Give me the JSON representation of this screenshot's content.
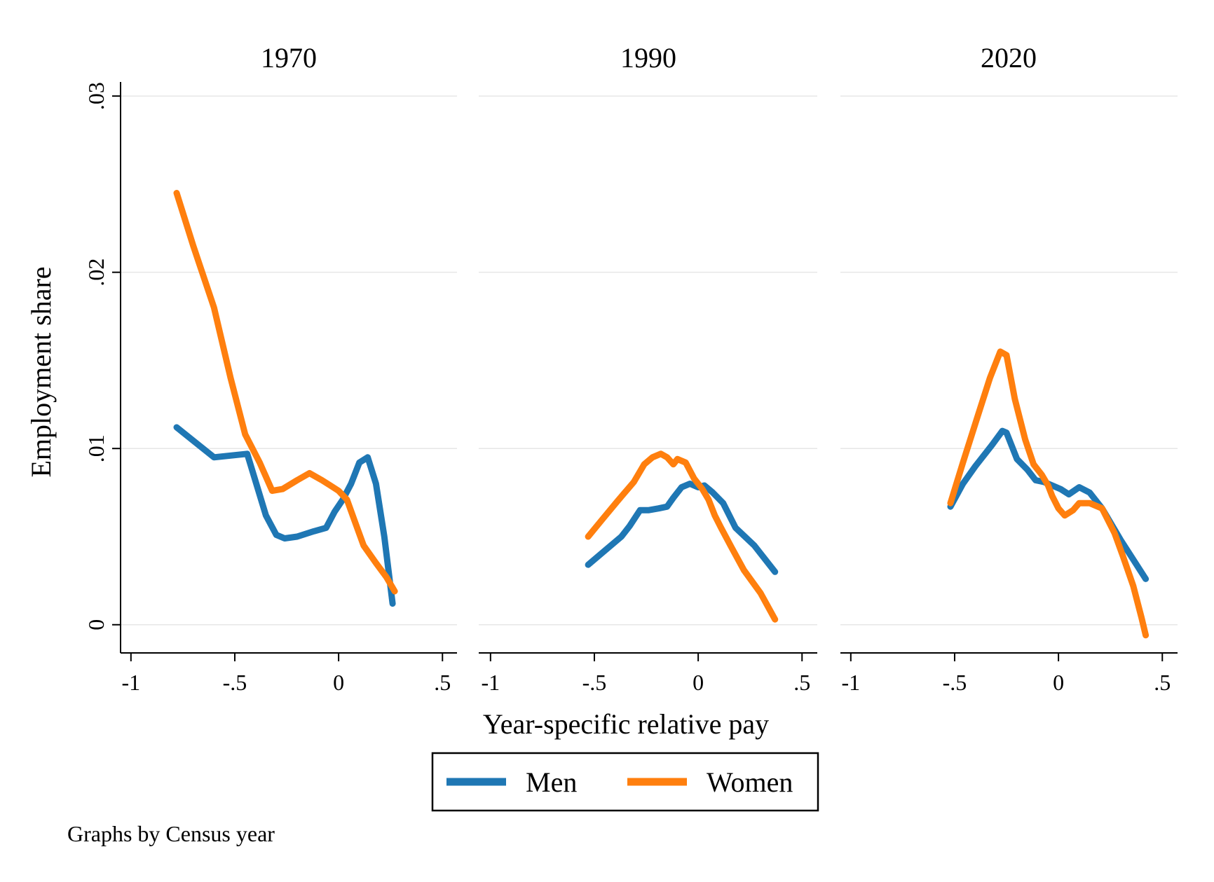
{
  "chart_data": {
    "type": "line",
    "ylabel": "Employment share",
    "xlabel": "Year-specific relative pay",
    "xlim": [
      -1.05,
      0.57
    ],
    "ylim": [
      -0.0016,
      0.0308
    ],
    "xticks": [
      -1,
      -0.5,
      0,
      0.5
    ],
    "xtick_labels": [
      "-1",
      "-.5",
      "0",
      ".5"
    ],
    "yticks": [
      0,
      0.01,
      0.02,
      0.03
    ],
    "ytick_labels": [
      "0",
      ".01",
      ".02",
      ".03"
    ],
    "grid": true,
    "legend_position": "bottom",
    "colors": {
      "Men": "#1f77b4",
      "Women": "#ff7f0e"
    },
    "panels": [
      {
        "title": "1970",
        "series": [
          {
            "name": "Men",
            "points": [
              [
                -0.78,
                0.0112
              ],
              [
                -0.6,
                0.0095
              ],
              [
                -0.44,
                0.0097
              ],
              [
                -0.35,
                0.0062
              ],
              [
                -0.3,
                0.0051
              ],
              [
                -0.26,
                0.0049
              ],
              [
                -0.2,
                0.005
              ],
              [
                -0.12,
                0.0053
              ],
              [
                -0.06,
                0.0055
              ],
              [
                -0.02,
                0.0064
              ],
              [
                0.02,
                0.0071
              ],
              [
                0.06,
                0.008
              ],
              [
                0.1,
                0.0092
              ],
              [
                0.14,
                0.0095
              ],
              [
                0.18,
                0.008
              ],
              [
                0.22,
                0.005
              ],
              [
                0.26,
                0.0012
              ]
            ]
          },
          {
            "name": "Women",
            "points": [
              [
                -0.78,
                0.0245
              ],
              [
                -0.7,
                0.0215
              ],
              [
                -0.6,
                0.018
              ],
              [
                -0.52,
                0.014
              ],
              [
                -0.45,
                0.0108
              ],
              [
                -0.38,
                0.0092
              ],
              [
                -0.32,
                0.0076
              ],
              [
                -0.27,
                0.0077
              ],
              [
                -0.2,
                0.0082
              ],
              [
                -0.14,
                0.0086
              ],
              [
                -0.08,
                0.0082
              ],
              [
                -0.04,
                0.0079
              ],
              [
                0.0,
                0.0076
              ],
              [
                0.04,
                0.0071
              ],
              [
                0.08,
                0.0058
              ],
              [
                0.12,
                0.0045
              ],
              [
                0.18,
                0.0035
              ],
              [
                0.23,
                0.0027
              ],
              [
                0.27,
                0.0019
              ]
            ]
          }
        ]
      },
      {
        "title": "1990",
        "series": [
          {
            "name": "Men",
            "points": [
              [
                -0.53,
                0.0034
              ],
              [
                -0.45,
                0.0042
              ],
              [
                -0.37,
                0.005
              ],
              [
                -0.33,
                0.0056
              ],
              [
                -0.28,
                0.0065
              ],
              [
                -0.24,
                0.0065
              ],
              [
                -0.19,
                0.0066
              ],
              [
                -0.15,
                0.0067
              ],
              [
                -0.12,
                0.0072
              ],
              [
                -0.08,
                0.0078
              ],
              [
                -0.04,
                0.008
              ],
              [
                0.0,
                0.0078
              ],
              [
                0.03,
                0.0079
              ],
              [
                0.07,
                0.0075
              ],
              [
                0.12,
                0.0069
              ],
              [
                0.18,
                0.0055
              ],
              [
                0.27,
                0.0045
              ],
              [
                0.37,
                0.003
              ]
            ]
          },
          {
            "name": "Women",
            "points": [
              [
                -0.53,
                0.005
              ],
              [
                -0.46,
                0.006
              ],
              [
                -0.39,
                0.007
              ],
              [
                -0.31,
                0.0081
              ],
              [
                -0.26,
                0.0091
              ],
              [
                -0.22,
                0.0095
              ],
              [
                -0.18,
                0.0097
              ],
              [
                -0.15,
                0.0095
              ],
              [
                -0.12,
                0.0091
              ],
              [
                -0.1,
                0.0094
              ],
              [
                -0.06,
                0.0092
              ],
              [
                -0.02,
                0.0083
              ],
              [
                0.02,
                0.0077
              ],
              [
                0.05,
                0.0071
              ],
              [
                0.08,
                0.0062
              ],
              [
                0.11,
                0.0055
              ],
              [
                0.16,
                0.0044
              ],
              [
                0.22,
                0.0031
              ],
              [
                0.3,
                0.0018
              ],
              [
                0.37,
                0.0003
              ]
            ]
          }
        ]
      },
      {
        "title": "2020",
        "series": [
          {
            "name": "Men",
            "points": [
              [
                -0.52,
                0.0067
              ],
              [
                -0.46,
                0.008
              ],
              [
                -0.4,
                0.009
              ],
              [
                -0.32,
                0.0102
              ],
              [
                -0.27,
                0.011
              ],
              [
                -0.25,
                0.0109
              ],
              [
                -0.2,
                0.0094
              ],
              [
                -0.15,
                0.0088
              ],
              [
                -0.11,
                0.0082
              ],
              [
                -0.07,
                0.0081
              ],
              [
                -0.03,
                0.0079
              ],
              [
                0.01,
                0.0077
              ],
              [
                0.05,
                0.0074
              ],
              [
                0.1,
                0.0078
              ],
              [
                0.15,
                0.0075
              ],
              [
                0.21,
                0.0066
              ],
              [
                0.3,
                0.0048
              ],
              [
                0.42,
                0.0026
              ]
            ]
          },
          {
            "name": "Women",
            "points": [
              [
                -0.52,
                0.0069
              ],
              [
                -0.46,
                0.0092
              ],
              [
                -0.39,
                0.0118
              ],
              [
                -0.33,
                0.014
              ],
              [
                -0.28,
                0.0155
              ],
              [
                -0.25,
                0.0153
              ],
              [
                -0.21,
                0.0128
              ],
              [
                -0.16,
                0.0105
              ],
              [
                -0.12,
                0.0091
              ],
              [
                -0.08,
                0.0085
              ],
              [
                -0.05,
                0.0079
              ],
              [
                -0.03,
                0.0073
              ],
              [
                0.0,
                0.0066
              ],
              [
                0.03,
                0.0062
              ],
              [
                0.07,
                0.0065
              ],
              [
                0.1,
                0.0069
              ],
              [
                0.15,
                0.0069
              ],
              [
                0.21,
                0.0066
              ],
              [
                0.27,
                0.0052
              ],
              [
                0.31,
                0.0039
              ],
              [
                0.36,
                0.0022
              ],
              [
                0.4,
                0.0004
              ],
              [
                0.42,
                -0.0006
              ]
            ]
          }
        ]
      }
    ]
  },
  "legend": {
    "items": [
      "Men",
      "Women"
    ]
  },
  "note": "Graphs by Census year"
}
